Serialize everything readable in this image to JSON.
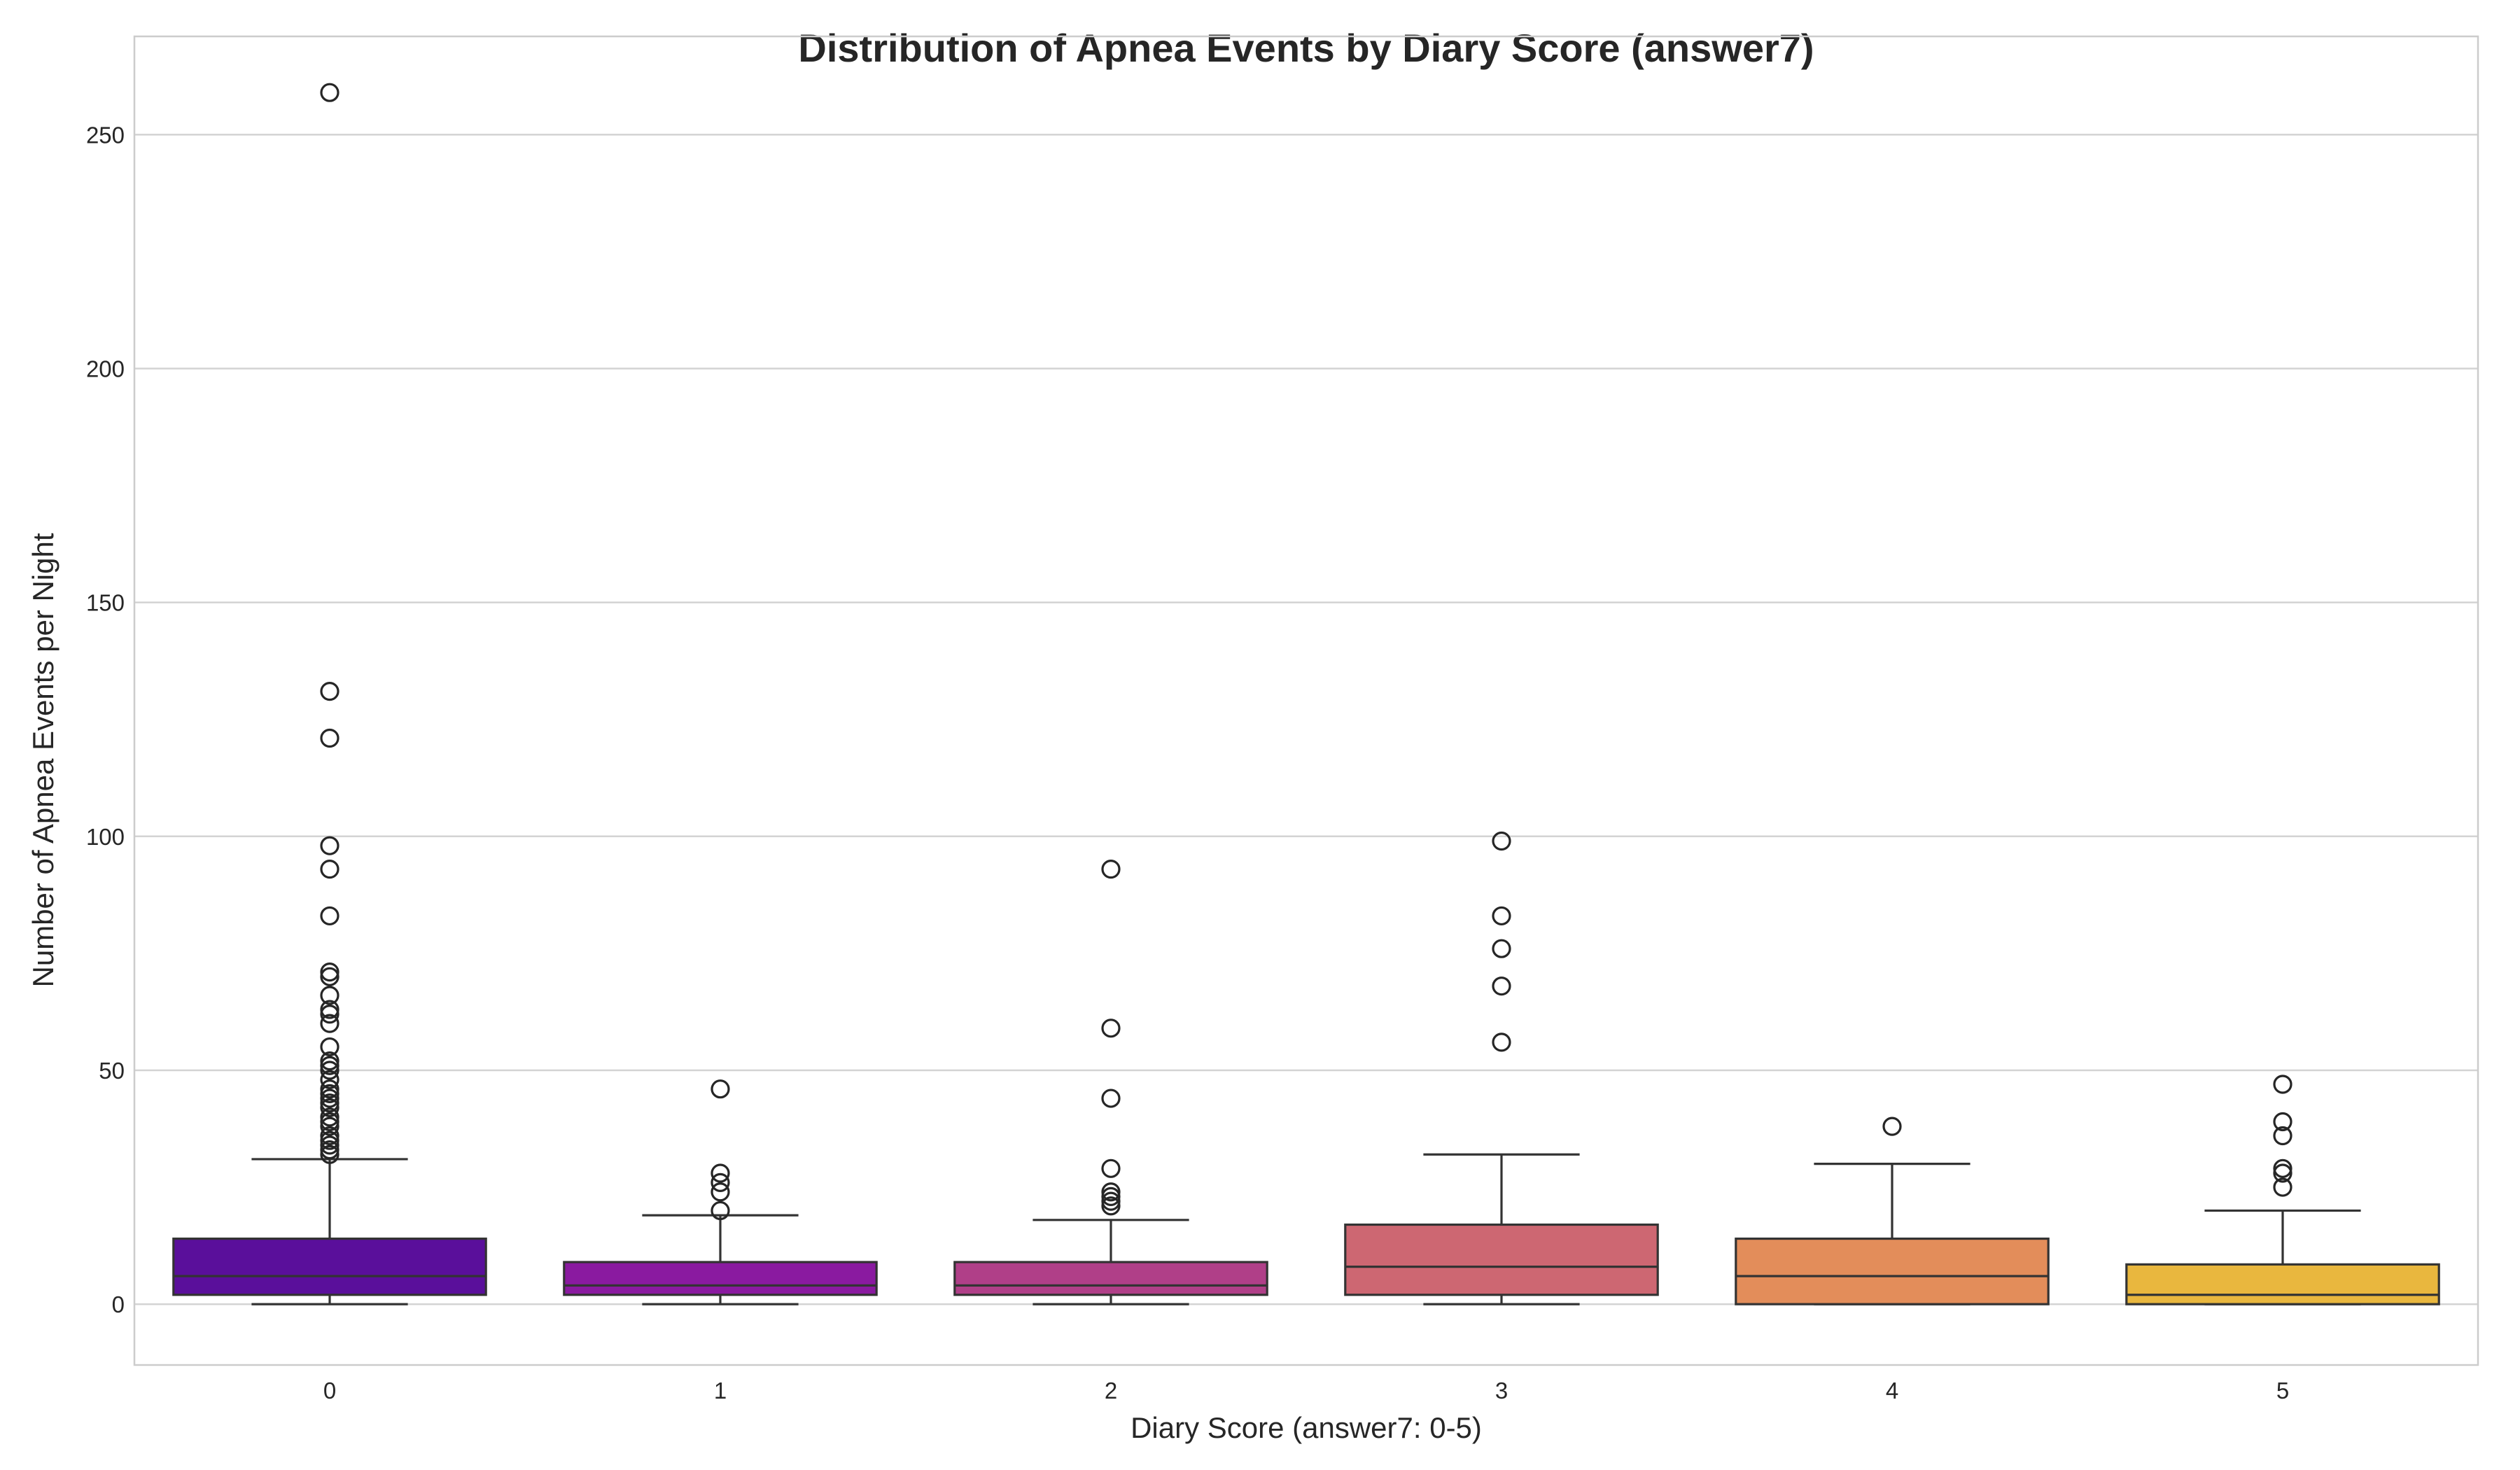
{
  "chart_data": {
    "type": "box",
    "title": "Distribution of Apnea Events by Diary Score (answer7)",
    "xlabel": "Diary Score (answer7: 0-5)",
    "ylabel": "Number of Apnea Events per Night",
    "ylim": [
      -13,
      271
    ],
    "yticks": [
      0,
      50,
      100,
      150,
      200,
      250
    ],
    "grid": "horizontal",
    "categories": [
      "0",
      "1",
      "2",
      "3",
      "4",
      "5"
    ],
    "boxes": [
      {
        "category": "0",
        "color": "#5a0f9b",
        "whisker_low": 0,
        "q1": 2,
        "median": 6,
        "q3": 14,
        "whisker_high": 31,
        "outliers": [
          259,
          131,
          121,
          98,
          93,
          83,
          71,
          70,
          66,
          63,
          62,
          60,
          55,
          52,
          51,
          50,
          48,
          46,
          45,
          44,
          43,
          42,
          40,
          39,
          38,
          36,
          35,
          34,
          33,
          32
        ]
      },
      {
        "category": "1",
        "color": "#8a1aa0",
        "whisker_low": 0,
        "q1": 2,
        "median": 4,
        "q3": 9,
        "whisker_high": 19,
        "outliers": [
          46,
          28,
          26,
          24,
          20
        ]
      },
      {
        "category": "2",
        "color": "#b03f88",
        "whisker_low": 0,
        "q1": 2,
        "median": 4,
        "q3": 9,
        "whisker_high": 18,
        "outliers": [
          93,
          59,
          44,
          29,
          24,
          23,
          22,
          21
        ]
      },
      {
        "category": "3",
        "color": "#cd6772",
        "whisker_low": 0,
        "q1": 2,
        "median": 8,
        "q3": 17,
        "whisker_high": 32,
        "outliers": [
          99,
          83,
          76,
          68,
          56
        ]
      },
      {
        "category": "4",
        "color": "#e38d5a",
        "whisker_low": 0,
        "q1": 0,
        "median": 6,
        "q3": 14,
        "whisker_high": 30,
        "outliers": [
          38
        ]
      },
      {
        "category": "5",
        "color": "#e9b73e",
        "whisker_low": 0,
        "q1": 0,
        "median": 2,
        "q3": 8.5,
        "whisker_high": 20,
        "outliers": [
          47,
          39,
          36,
          29,
          28,
          25
        ]
      }
    ]
  }
}
